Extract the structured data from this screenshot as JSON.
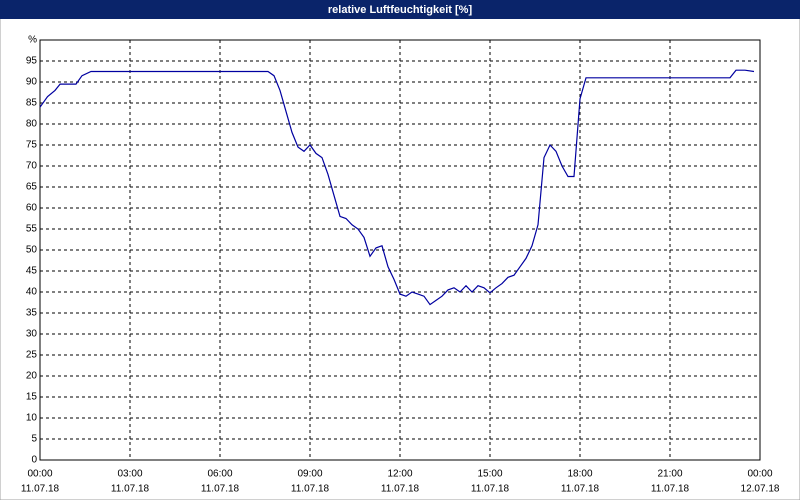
{
  "chart_data": {
    "type": "line",
    "title": "relative Luftfeuchtigkeit [%]",
    "x": [
      0,
      0.25,
      0.5,
      0.67,
      1.0,
      1.2,
      1.4,
      1.7,
      2.0,
      7.6,
      7.8,
      8.0,
      8.2,
      8.4,
      8.6,
      8.8,
      9.0,
      9.2,
      9.4,
      9.6,
      9.8,
      10.0,
      10.2,
      10.4,
      10.6,
      10.8,
      11.0,
      11.2,
      11.4,
      11.6,
      11.8,
      12.0,
      12.2,
      12.4,
      12.6,
      12.8,
      13.0,
      13.2,
      13.4,
      13.6,
      13.8,
      14.0,
      14.2,
      14.4,
      14.6,
      14.8,
      15.0,
      15.2,
      15.4,
      15.6,
      15.8,
      16.0,
      16.2,
      16.4,
      16.6,
      16.8,
      17.0,
      17.2,
      17.4,
      17.6,
      17.8,
      18.0,
      18.2,
      23.0,
      23.2,
      23.5,
      23.8
    ],
    "series": [
      {
        "color": "#0000a0",
        "values": [
          84,
          86.5,
          88,
          89.5,
          89.5,
          89.5,
          91.5,
          92.5,
          92.5,
          92.5,
          91.5,
          88,
          83,
          78,
          74.5,
          73.5,
          75,
          73,
          72,
          68,
          63,
          58,
          57.5,
          56,
          55,
          53,
          48.5,
          50.5,
          51,
          46,
          43,
          39.5,
          39,
          40,
          39.5,
          39,
          37,
          38,
          39,
          40.5,
          41,
          40,
          41.5,
          40,
          41.5,
          41,
          39.8,
          41,
          42,
          43.5,
          44,
          46,
          48,
          51,
          56,
          72,
          75,
          73.5,
          70,
          67.5,
          67.5,
          86,
          91,
          91,
          92.8,
          92.8,
          92.5
        ]
      }
    ],
    "xlim": [
      0,
      24
    ],
    "xticks": [
      {
        "value": 0,
        "label": "00:00",
        "date": "11.07.18"
      },
      {
        "value": 3,
        "label": "03:00",
        "date": "11.07.18"
      },
      {
        "value": 6,
        "label": "06:00",
        "date": "11.07.18"
      },
      {
        "value": 9,
        "label": "09:00",
        "date": "11.07.18"
      },
      {
        "value": 12,
        "label": "12:00",
        "date": "11.07.18"
      },
      {
        "value": 15,
        "label": "15:00",
        "date": "11.07.18"
      },
      {
        "value": 18,
        "label": "18:00",
        "date": "11.07.18"
      },
      {
        "value": 21,
        "label": "21:00",
        "date": "11.07.18"
      },
      {
        "value": 24,
        "label": "00:00",
        "date": "12.07.18"
      }
    ],
    "ylim": [
      0,
      100
    ],
    "yticks": [
      0,
      5,
      10,
      15,
      20,
      25,
      30,
      35,
      40,
      45,
      50,
      55,
      60,
      65,
      70,
      75,
      80,
      85,
      90,
      95,
      {
        "value": 100,
        "label": "%"
      }
    ],
    "grid": true
  }
}
